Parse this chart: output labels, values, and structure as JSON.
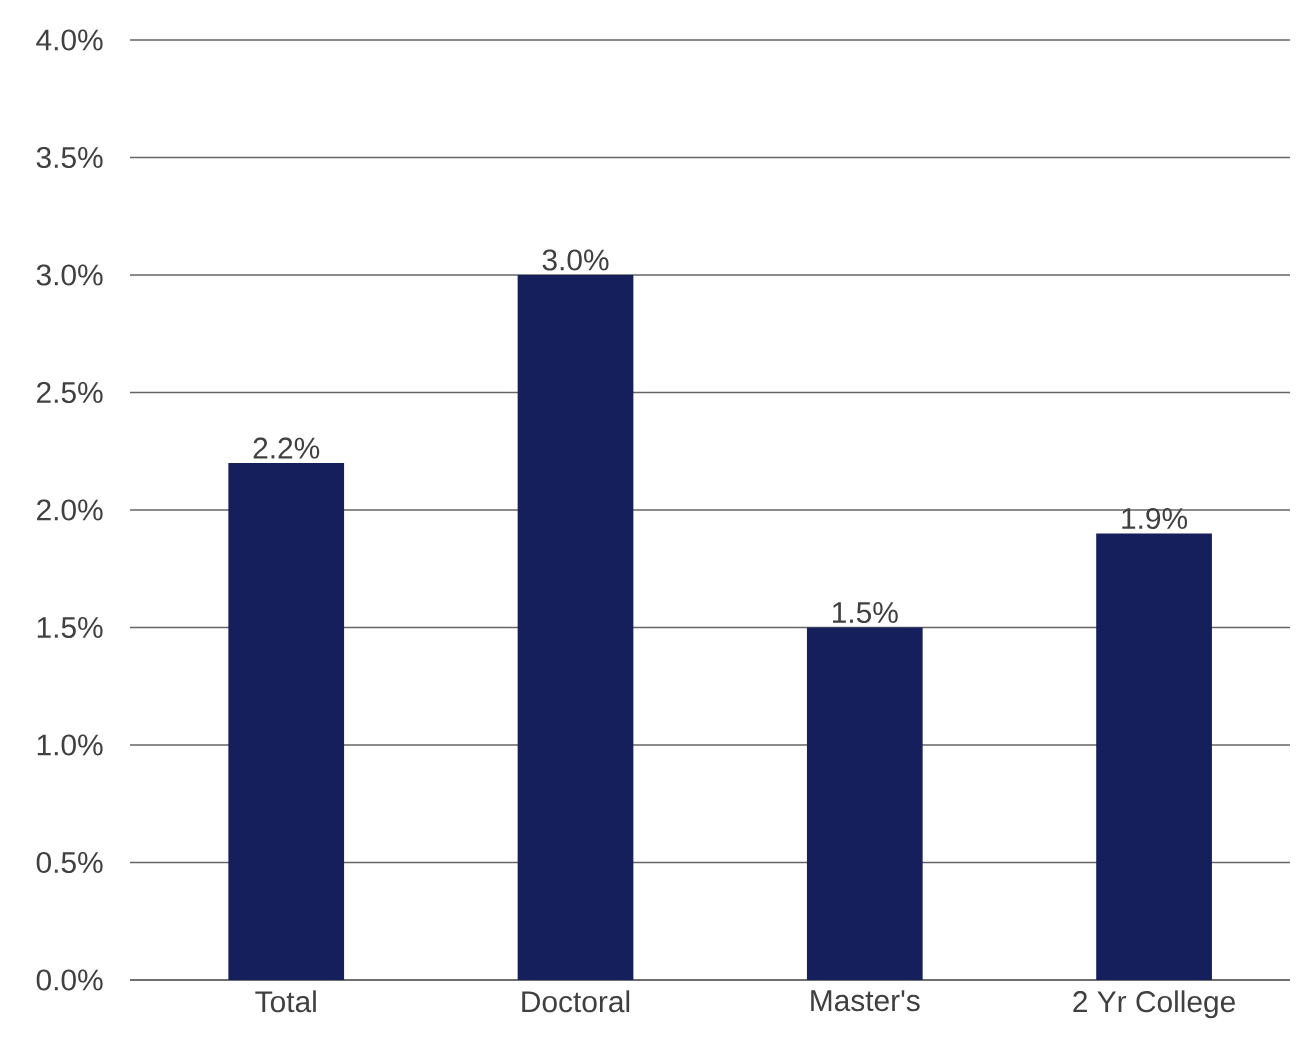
{
  "chart_data": {
    "type": "bar",
    "categories": [
      "Total",
      "Doctoral",
      "Master's",
      "2 Yr College"
    ],
    "values": [
      2.2,
      3.0,
      1.5,
      1.9
    ],
    "value_labels": [
      "2.2%",
      "3.0%",
      "1.5%",
      "1.9%"
    ],
    "color": "#141f5c",
    "ylim": [
      0,
      4.0
    ],
    "yticks": [
      {
        "value": 0,
        "label": "0.0%"
      },
      {
        "value": 0.5,
        "label": "0.5%"
      },
      {
        "value": 1.0,
        "label": "1.0%"
      },
      {
        "value": 1.5,
        "label": "1.5%"
      },
      {
        "value": 2.0,
        "label": "2.0%"
      },
      {
        "value": 2.5,
        "label": "2.5%"
      },
      {
        "value": 3.0,
        "label": "3.0%"
      },
      {
        "value": 3.5,
        "label": "3.5%"
      },
      {
        "value": 4.0,
        "label": "4.0%"
      }
    ],
    "grid": "y"
  }
}
